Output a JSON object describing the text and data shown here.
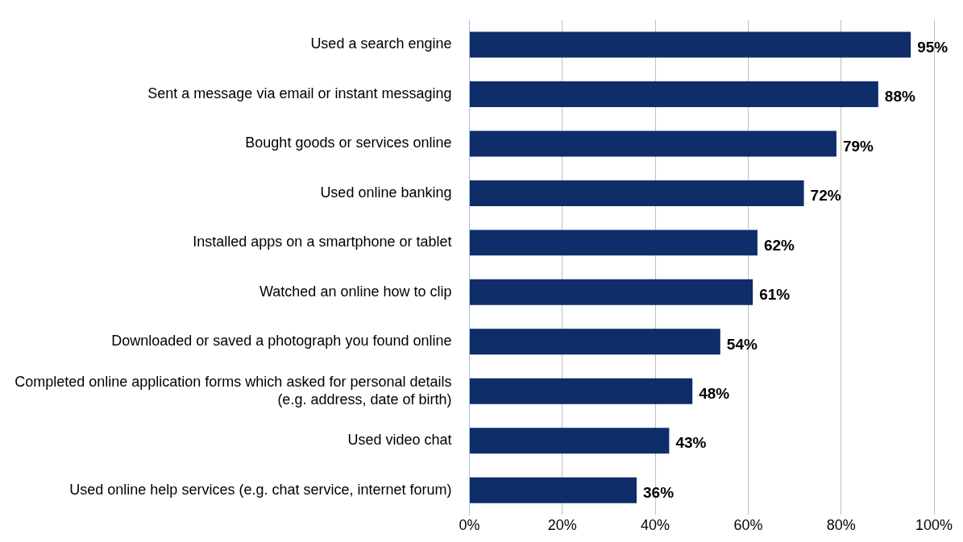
{
  "chart_data": {
    "type": "bar",
    "orientation": "horizontal",
    "categories": [
      "Used a search engine",
      "Sent a message via email or instant messaging",
      "Bought goods or services online",
      "Used online banking",
      "Installed apps on a smartphone or tablet",
      "Watched an online how to clip",
      "Downloaded or saved a photograph you found online",
      "Completed online application forms which asked for personal details (e.g. address, date of birth)",
      "Used video chat",
      "Used online help services (e.g. chat service, internet forum)"
    ],
    "values": [
      95,
      88,
      79,
      72,
      62,
      61,
      54,
      48,
      43,
      36
    ],
    "color": "#0e2d69",
    "xlim": [
      0,
      100
    ],
    "xticks": [
      {
        "value": 0,
        "label": "0%"
      },
      {
        "value": 20,
        "label": "20%"
      },
      {
        "value": 40,
        "label": "40%"
      },
      {
        "value": 60,
        "label": "60%"
      },
      {
        "value": 80,
        "label": "80%"
      },
      {
        "value": 100,
        "label": "100%"
      }
    ],
    "value_labels": [
      "95%",
      "88%",
      "79%",
      "72%",
      "62%",
      "61%",
      "54%",
      "48%",
      "43%",
      "36%"
    ],
    "grid": "x",
    "legend": false
  }
}
